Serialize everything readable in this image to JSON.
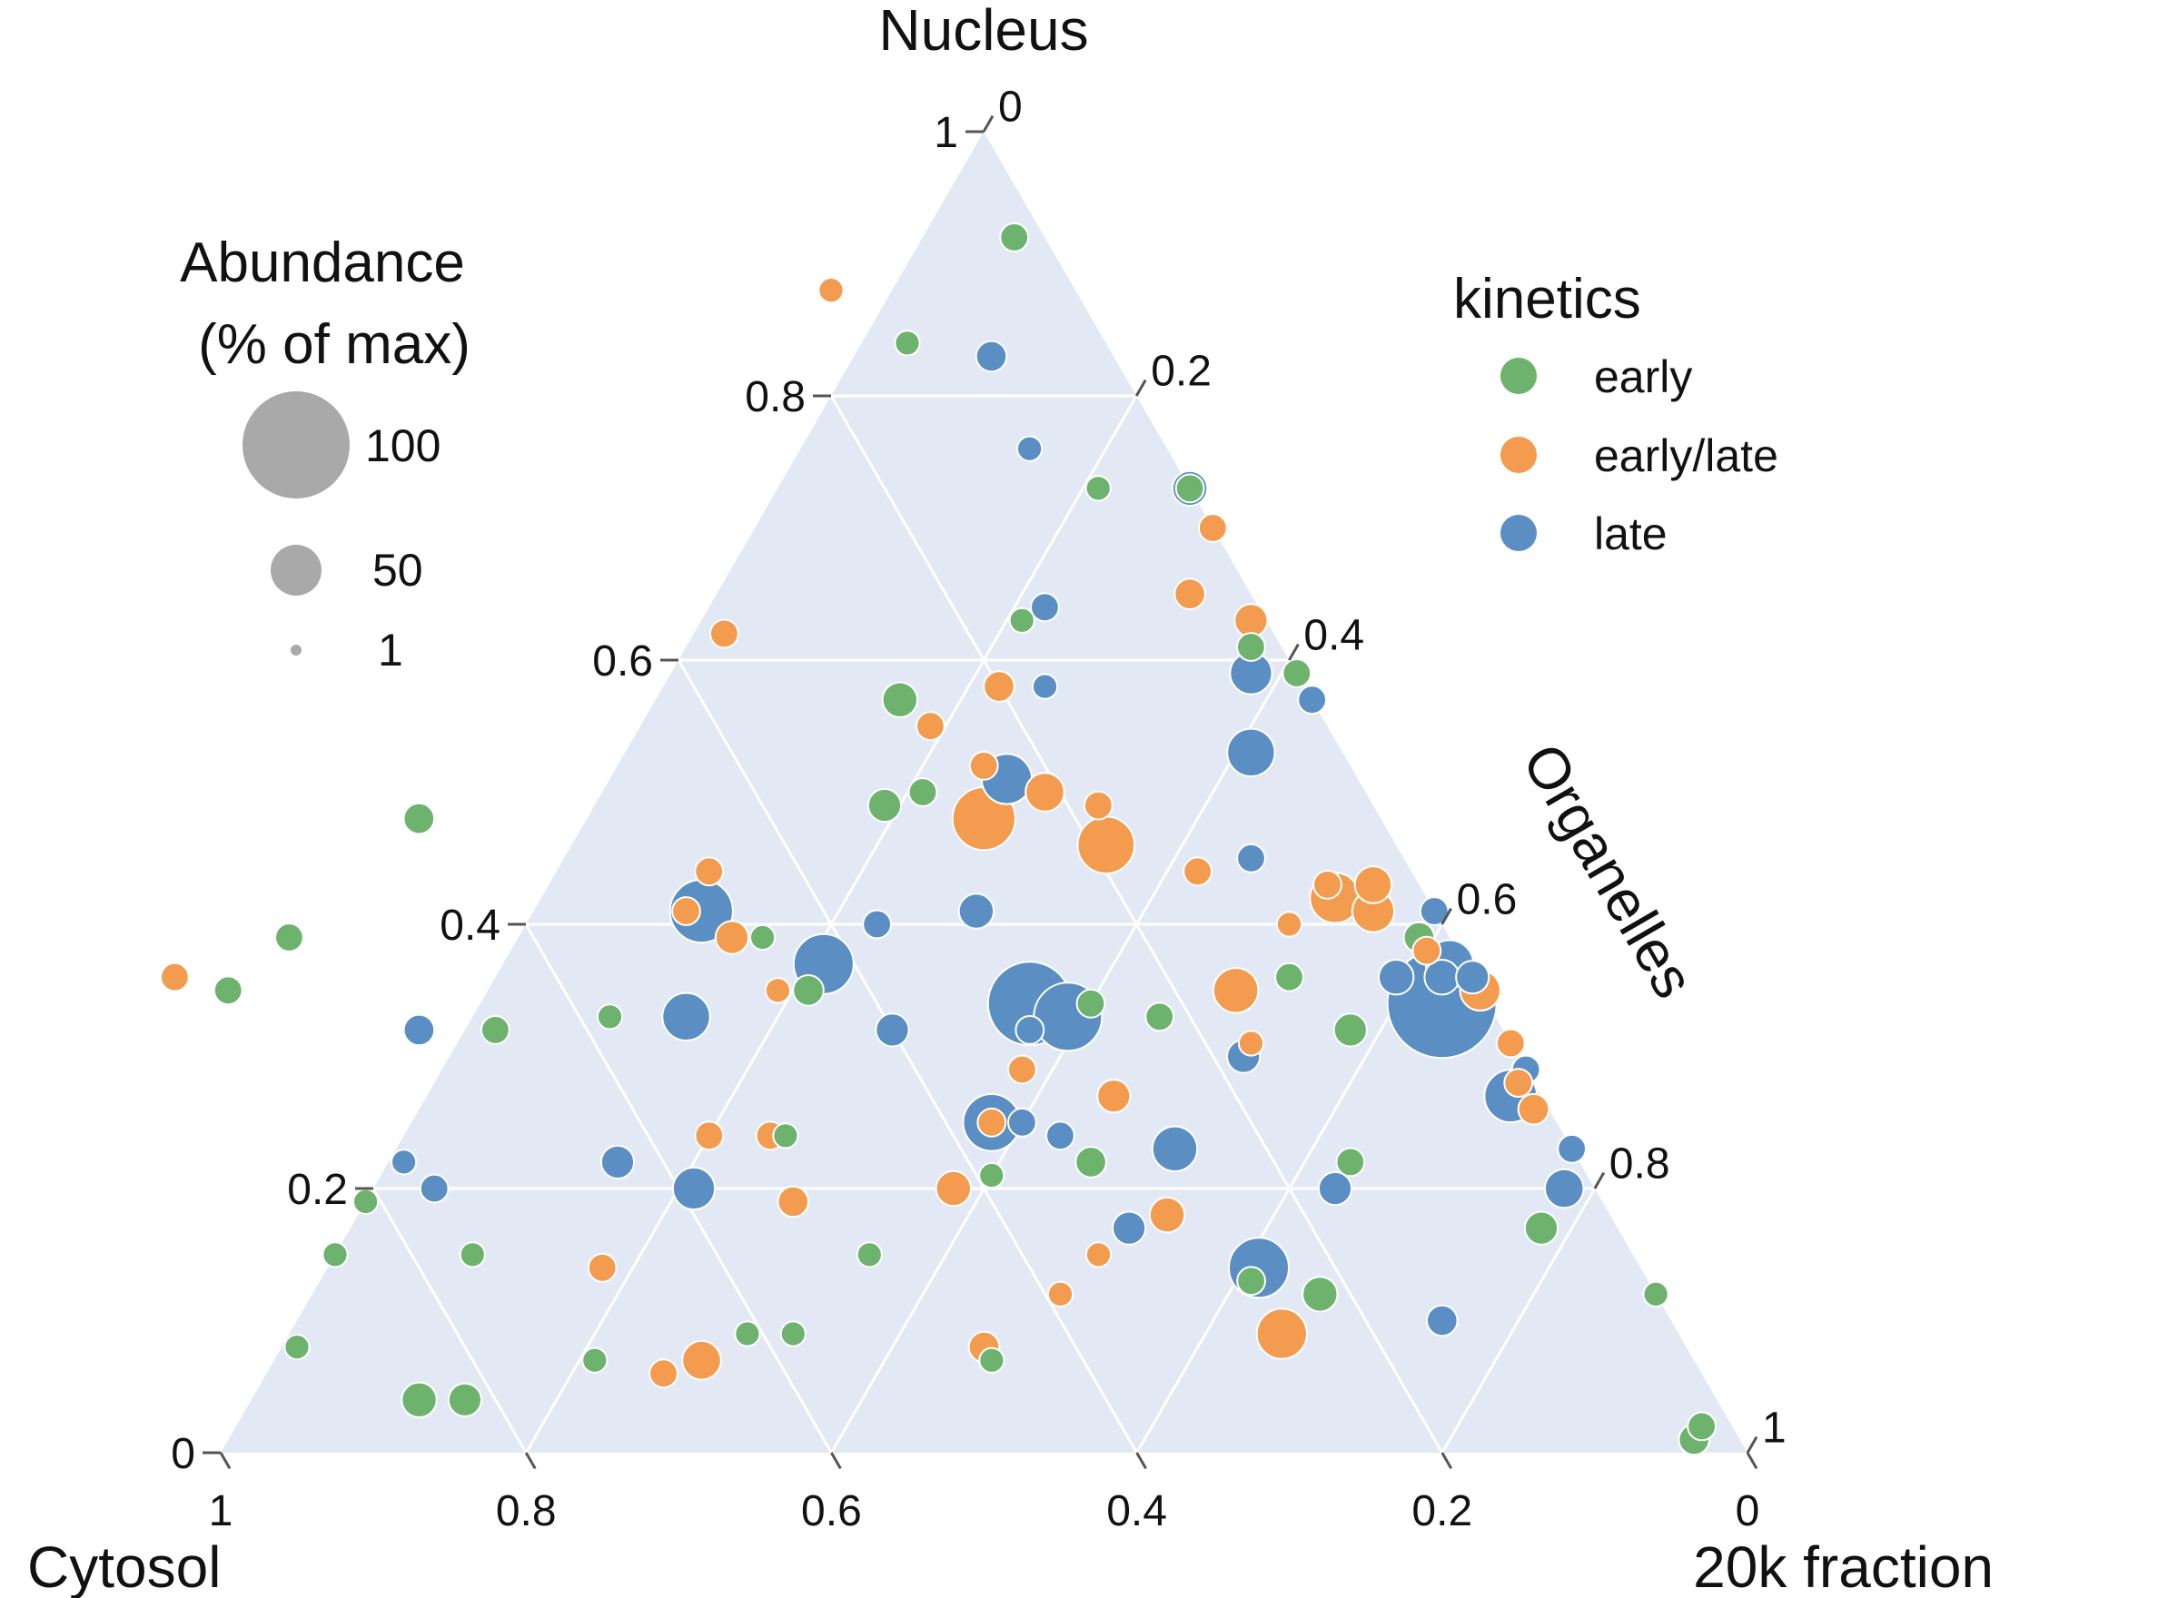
{
  "chart_data": {
    "type": "scatter",
    "subtype": "ternary-bubble",
    "axes": {
      "top": {
        "title": "Nucleus"
      },
      "right": {
        "title": "Organelles"
      },
      "left_corner_title": "Cytosol",
      "right_corner_title": "20k fraction"
    },
    "ticks": {
      "nucleus": [
        "0",
        "0.2",
        "0.4",
        "0.6",
        "0.8",
        "1"
      ],
      "organelles": [
        "0",
        "0.2",
        "0.4",
        "0.6",
        "0.8",
        "1"
      ],
      "bottom": [
        "1",
        "0.8",
        "0.6",
        "0.4",
        "0.2",
        "0"
      ]
    },
    "grid": true,
    "size_legend": {
      "title_line1": "Abundance",
      "title_line2": "(% of max)",
      "items": [
        {
          "label": "100",
          "value": 100
        },
        {
          "label": "50",
          "value": 50
        },
        {
          "label": "1",
          "value": 1
        }
      ]
    },
    "color_legend": {
      "title": "kinetics",
      "items": [
        {
          "label": "early",
          "color": "#6db36d"
        },
        {
          "label": "early/late",
          "color": "#f39b4e"
        },
        {
          "label": "late",
          "color": "#5b8fc3"
        }
      ]
    },
    "points": [
      {
        "c": 0.02,
        "n": 0.02,
        "k": "early",
        "s": 3
      },
      {
        "c": 0.03,
        "n": 0.01,
        "k": "early",
        "s": 4
      },
      {
        "c": 0.91,
        "n": 0.08,
        "k": "early",
        "s": 2
      },
      {
        "c": 0.85,
        "n": 0.04,
        "k": "early",
        "s": 6
      },
      {
        "c": 0.82,
        "n": 0.04,
        "k": "early",
        "s": 5
      },
      {
        "c": 0.68,
        "n": 0.14,
        "k": "early/late",
        "s": 3
      },
      {
        "c": 0.68,
        "n": 0.06,
        "k": "early/late",
        "s": 3
      },
      {
        "c": 0.65,
        "n": 0.07,
        "k": "early/late",
        "s": 8
      },
      {
        "c": 0.61,
        "n": 0.09,
        "k": "early",
        "s": 2
      },
      {
        "c": 0.58,
        "n": 0.09,
        "k": "early",
        "s": 2
      },
      {
        "c": 0.46,
        "n": 0.07,
        "k": "early",
        "s": 2
      },
      {
        "c": 0.39,
        "n": 0.12,
        "k": "early/late",
        "s": 2
      },
      {
        "c": 0.35,
        "n": 0.15,
        "k": "early/late",
        "s": 2
      },
      {
        "c": 0.37,
        "n": 0.25,
        "k": "early/late",
        "s": 3
      },
      {
        "c": 0.58,
        "n": 0.33,
        "k": "early",
        "s": 2
      },
      {
        "c": 0.76,
        "n": 0.39,
        "k": "early",
        "s": 3
      },
      {
        "c": 0.25,
        "n": 0.14,
        "k": "late",
        "s": 25
      },
      {
        "c": 0.26,
        "n": 0.13,
        "k": "early",
        "s": 3
      },
      {
        "c": 0.22,
        "n": 0.12,
        "k": "early",
        "s": 6
      },
      {
        "c": 0.29,
        "n": 0.18,
        "k": "early/late",
        "s": 6
      },
      {
        "c": 0.26,
        "n": 0.23,
        "k": "late",
        "s": 12
      },
      {
        "c": 0.35,
        "n": 0.25,
        "k": "late",
        "s": 3
      },
      {
        "c": 0.4,
        "n": 0.32,
        "k": "late",
        "s": 5
      },
      {
        "c": 0.32,
        "n": 0.49,
        "k": "early",
        "s": 5
      },
      {
        "c": 0.29,
        "n": 0.5,
        "k": "early",
        "s": 3
      },
      {
        "c": 0.24,
        "n": 0.52,
        "k": "early/late",
        "s": 3
      },
      {
        "c": 0.21,
        "n": 0.5,
        "k": "early/late",
        "s": 8
      },
      {
        "c": 0.18,
        "n": 0.49,
        "k": "early/late",
        "s": 3
      },
      {
        "c": 0.1,
        "n": 0.4,
        "k": "early/late",
        "s": 2
      },
      {
        "c": 0.36,
        "n": 0.62,
        "k": "early/late",
        "s": 3
      },
      {
        "c": 0.16,
        "n": 0.88,
        "k": "early/late",
        "s": 2
      },
      {
        "c": 0.13,
        "n": 0.84,
        "k": "early",
        "s": 2
      },
      {
        "c": 0.09,
        "n": 0.76,
        "k": "late",
        "s": 2
      },
      {
        "c": 0.16,
        "n": 0.63,
        "k": "early",
        "s": 2
      },
      {
        "c": 0.08,
        "n": 0.83,
        "k": "late",
        "s": 4
      },
      {
        "c": 0.02,
        "n": 0.92,
        "k": "early",
        "s": 3
      },
      {
        "c": 0.06,
        "n": 0.73,
        "k": "early/late",
        "s": 2
      },
      {
        "c": 0.06,
        "n": 0.73,
        "k": "early",
        "s": 2
      },
      {
        "c": 0.0,
        "n": 0.73,
        "k": "early",
        "s": 3
      },
      {
        "c": 0.0,
        "n": 0.73,
        "k": "late",
        "s": 6
      },
      {
        "c": 0.0,
        "n": 0.7,
        "k": "early/late",
        "s": 3
      },
      {
        "c": 0.04,
        "n": 0.65,
        "k": "early/late",
        "s": 4
      },
      {
        "c": 0.01,
        "n": 0.63,
        "k": "early/late",
        "s": 5
      },
      {
        "c": 0.02,
        "n": 0.61,
        "k": "early",
        "s": 3
      },
      {
        "c": 0.0,
        "n": 0.59,
        "k": "early",
        "s": 3
      },
      {
        "c": 0.03,
        "n": 0.59,
        "k": "late",
        "s": 10
      },
      {
        "c": 0.0,
        "n": 0.57,
        "k": "late",
        "s": 3
      },
      {
        "c": 0.14,
        "n": 0.64,
        "k": "late",
        "s": 3
      },
      {
        "c": 0.17,
        "n": 0.58,
        "k": "late",
        "s": 2
      },
      {
        "c": 0.2,
        "n": 0.58,
        "k": "early/late",
        "s": 4
      },
      {
        "c": 0.27,
        "n": 0.57,
        "k": "early",
        "s": 6
      },
      {
        "c": 0.26,
        "n": 0.55,
        "k": "early/late",
        "s": 3
      },
      {
        "c": 0.06,
        "n": 0.53,
        "k": "late",
        "s": 14
      },
      {
        "c": 0.23,
        "n": 0.51,
        "k": "late",
        "s": 16
      },
      {
        "c": 0.26,
        "n": 0.48,
        "k": "early/late",
        "s": 28
      },
      {
        "c": 0.19,
        "n": 0.46,
        "k": "early/late",
        "s": 22
      },
      {
        "c": 0.14,
        "n": 0.44,
        "k": "early/late",
        "s": 3
      },
      {
        "c": 0.1,
        "n": 0.45,
        "k": "late",
        "s": 3
      },
      {
        "c": 0.06,
        "n": 0.43,
        "k": "early/late",
        "s": 3
      },
      {
        "c": 0.03,
        "n": 0.43,
        "k": "early/late",
        "s": 7
      },
      {
        "c": 0.06,
        "n": 0.42,
        "k": "early/late",
        "s": 16
      },
      {
        "c": 0.04,
        "n": 0.41,
        "k": "early/late",
        "s": 10
      },
      {
        "c": 0.0,
        "n": 0.41,
        "k": "late",
        "s": 3
      },
      {
        "c": 0.02,
        "n": 0.39,
        "k": "early",
        "s": 4
      },
      {
        "c": 0.02,
        "n": 0.38,
        "k": "early/late",
        "s": 3
      },
      {
        "c": 0.01,
        "n": 0.37,
        "k": "late",
        "s": 14
      },
      {
        "c": 0.02,
        "n": 0.36,
        "k": "late",
        "s": 6
      },
      {
        "c": 0.0,
        "n": 0.36,
        "k": "late",
        "s": 5
      },
      {
        "c": 0.0,
        "n": 0.35,
        "k": "early/late",
        "s": 9
      },
      {
        "c": 0.05,
        "n": 0.36,
        "k": "late",
        "s": 6
      },
      {
        "c": 0.03,
        "n": 0.34,
        "k": "late",
        "s": 100
      },
      {
        "c": 0.0,
        "n": 0.31,
        "k": "early/late",
        "s": 3
      },
      {
        "c": 0.3,
        "n": 0.41,
        "k": "late",
        "s": 6
      },
      {
        "c": 0.37,
        "n": 0.4,
        "k": "late",
        "s": 3
      },
      {
        "c": 0.45,
        "n": 0.39,
        "k": "early",
        "s": 2
      },
      {
        "c": 0.47,
        "n": 0.39,
        "k": "early/late",
        "s": 5
      },
      {
        "c": 0.49,
        "n": 0.41,
        "k": "early/late",
        "s": 3
      },
      {
        "c": 0.48,
        "n": 0.41,
        "k": "late",
        "s": 28
      },
      {
        "c": 0.42,
        "n": 0.37,
        "k": "late",
        "s": 25
      },
      {
        "c": 0.44,
        "n": 0.35,
        "k": "early",
        "s": 4
      },
      {
        "c": 0.46,
        "n": 0.35,
        "k": "early/late",
        "s": 2
      },
      {
        "c": 0.53,
        "n": 0.33,
        "k": "late",
        "s": 14
      },
      {
        "c": 0.3,
        "n": 0.34,
        "k": "late",
        "s": 55
      },
      {
        "c": 0.28,
        "n": 0.33,
        "k": "late",
        "s": 34
      },
      {
        "c": 0.31,
        "n": 0.32,
        "k": "late",
        "s": 3
      },
      {
        "c": 0.22,
        "n": 0.33,
        "k": "early",
        "s": 3
      },
      {
        "c": 0.16,
        "n": 0.35,
        "k": "early/late",
        "s": 12
      },
      {
        "c": 0.12,
        "n": 0.36,
        "k": "early",
        "s": 3
      },
      {
        "c": 0.1,
        "n": 0.32,
        "k": "early",
        "s": 5
      },
      {
        "c": 0.17,
        "n": 0.31,
        "k": "early/late",
        "s": 2
      },
      {
        "c": 0.18,
        "n": 0.3,
        "k": "late",
        "s": 5
      },
      {
        "c": 0.26,
        "n": 0.34,
        "k": "early",
        "s": 3
      },
      {
        "c": 0.33,
        "n": 0.29,
        "k": "early/late",
        "s": 3
      },
      {
        "c": 0.28,
        "n": 0.27,
        "k": "early/late",
        "s": 5
      },
      {
        "c": 0.37,
        "n": 0.25,
        "k": "late",
        "s": 22
      },
      {
        "c": 0.33,
        "n": 0.24,
        "k": "late",
        "s": 3
      },
      {
        "c": 0.32,
        "n": 0.22,
        "k": "early",
        "s": 4
      },
      {
        "c": 0.39,
        "n": 0.21,
        "k": "early",
        "s": 2
      },
      {
        "c": 0.42,
        "n": 0.2,
        "k": "early/late",
        "s": 6
      },
      {
        "c": 0.32,
        "n": 0.17,
        "k": "late",
        "s": 5
      },
      {
        "c": 0.5,
        "n": 0.15,
        "k": "early",
        "s": 2
      },
      {
        "c": 0.46,
        "n": 0.08,
        "k": "early/late",
        "s": 4
      },
      {
        "c": 0.26,
        "n": 0.09,
        "k": "early/late",
        "s": 16
      },
      {
        "c": 0.15,
        "n": 0.1,
        "k": "late",
        "s": 4
      },
      {
        "c": 0.17,
        "n": 0.2,
        "k": "late",
        "s": 5
      },
      {
        "c": 0.15,
        "n": 0.22,
        "k": "early",
        "s": 3
      },
      {
        "c": 0.0,
        "n": 0.12,
        "k": "early",
        "s": 2
      },
      {
        "c": 0.05,
        "n": 0.17,
        "k": "early",
        "s": 5
      },
      {
        "c": 0.02,
        "n": 0.2,
        "k": "late",
        "s": 8
      },
      {
        "c": 0.0,
        "n": 0.23,
        "k": "late",
        "s": 3
      },
      {
        "c": 0.0,
        "n": 0.29,
        "k": "late",
        "s": 3
      },
      {
        "c": 0.01,
        "n": 0.28,
        "k": "early/late",
        "s": 3
      },
      {
        "c": 0.02,
        "n": 0.27,
        "k": "late",
        "s": 18
      },
      {
        "c": 0.01,
        "n": 0.26,
        "k": "early/late",
        "s": 4
      },
      {
        "c": 0.81,
        "n": 0.19,
        "k": "early",
        "s": 2
      },
      {
        "c": 0.85,
        "n": 0.15,
        "k": "early",
        "s": 2
      },
      {
        "c": 0.76,
        "n": 0.2,
        "k": "late",
        "s": 3
      },
      {
        "c": 0.71,
        "n": 0.32,
        "k": "late",
        "s": 4
      },
      {
        "c": 0.66,
        "n": 0.32,
        "k": "early",
        "s": 3
      },
      {
        "c": 0.85,
        "n": 0.36,
        "k": "early/late",
        "s": 3
      },
      {
        "c": 0.82,
        "n": 0.35,
        "k": "early",
        "s": 3
      },
      {
        "c": 0.63,
        "n": 0.22,
        "k": "late",
        "s": 5
      },
      {
        "c": 0.56,
        "n": 0.24,
        "k": "early/late",
        "s": 3
      },
      {
        "c": 0.59,
        "n": 0.2,
        "k": "late",
        "s": 10
      },
      {
        "c": 0.53,
        "n": 0.19,
        "k": "early/late",
        "s": 4
      },
      {
        "c": 0.51,
        "n": 0.24,
        "k": "early",
        "s": 2
      },
      {
        "c": 0.52,
        "n": 0.24,
        "k": "early/late",
        "s": 3
      },
      {
        "c": 0.46,
        "n": 0.44,
        "k": "early/late",
        "s": 3
      },
      {
        "c": 0.63,
        "n": 0.48,
        "k": "early",
        "s": 4
      },
      {
        "c": 0.77,
        "n": 0.22,
        "k": "late",
        "s": 2
      },
      {
        "c": 0.76,
        "n": 0.15,
        "k": "early",
        "s": 2
      },
      {
        "c": 0.72,
        "n": 0.07,
        "k": "early",
        "s": 2
      }
    ]
  }
}
